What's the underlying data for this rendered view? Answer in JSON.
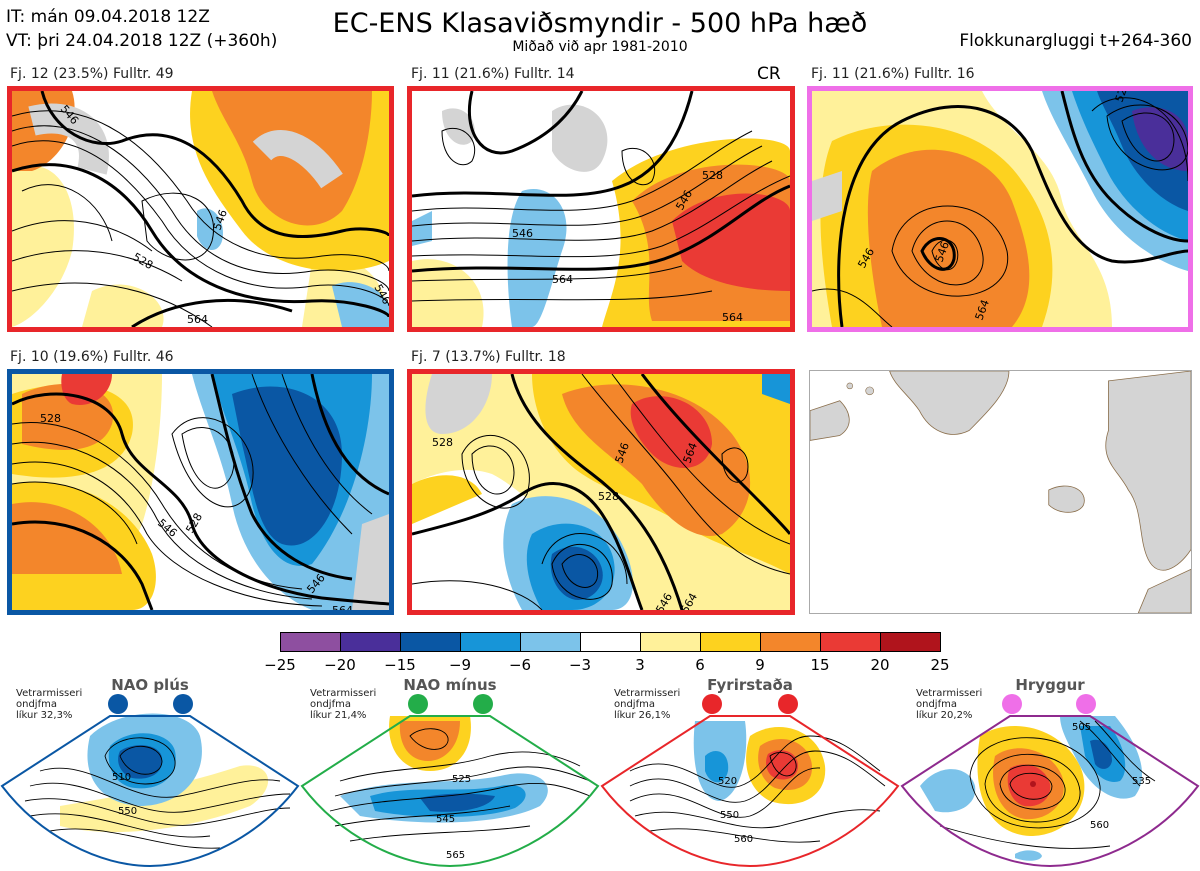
{
  "header": {
    "init_time": "IT: mán 09.04.2018 12Z",
    "valid_time": "VT: þri 24.04.2018 12Z  (+360h)",
    "title": "EC-ENS Klasaviðsmyndir - 500 hPa hæð",
    "subtitle": "Miðað við apr 1981-2010",
    "window": "Flokkunargluggi t+264-360"
  },
  "panels": [
    {
      "label": "Fj. 12 (23.5%)   Fulltr. 49",
      "border_color": "#e8262a",
      "contours": [
        "546",
        "528",
        "546",
        "564",
        "546"
      ]
    },
    {
      "label": "Fj. 11 (21.6%)   Fulltr. 14",
      "border_color": "#e8262a",
      "badge": "CR",
      "contours": [
        "546",
        "528",
        "546",
        "564",
        "564"
      ]
    },
    {
      "label": "Fj. 11 (21.6%)   Fulltr. 16",
      "border_color": "#ef6fe8",
      "contours": [
        "546",
        "546",
        "564",
        "528"
      ]
    },
    {
      "label": "Fj. 10 (19.6%)   Fulltr. 46",
      "border_color": "#0a57a4",
      "contours": [
        "528",
        "546",
        "528",
        "546",
        "564"
      ]
    },
    {
      "label": "Fj. 7 (13.7%)   Fulltr. 18",
      "border_color": "#e8262a",
      "contours": [
        "528",
        "546",
        "564",
        "528",
        "546",
        "564"
      ]
    },
    {
      "label": "",
      "border_color": "#aaaaaa",
      "contours": []
    }
  ],
  "colorbar": {
    "colors": [
      "#8e4fa0",
      "#4a2f9a",
      "#0a57a4",
      "#1795d8",
      "#7cc3ea",
      "#ffffff",
      "#fff19a",
      "#fdd21f",
      "#f3862b",
      "#ea3a35",
      "#b0141c"
    ],
    "ticks": [
      "−25",
      "−20",
      "−15",
      "−9",
      "−6",
      "−3",
      "3",
      "6",
      "9",
      "15",
      "20",
      "25"
    ]
  },
  "regimes": [
    {
      "name": "NAO plús",
      "dot_color": "#0a57a4",
      "border_color": "#0a57a4",
      "info": [
        "Vetrarmisseri",
        "ondjfma",
        "líkur 32,3%"
      ],
      "contours": [
        "510",
        "550"
      ]
    },
    {
      "name": "NAO mínus",
      "dot_color": "#23ad49",
      "border_color": "#23ad49",
      "info": [
        "Vetrarmisseri",
        "ondjfma",
        "líkur 21,4%"
      ],
      "contours": [
        "525",
        "545",
        "565"
      ]
    },
    {
      "name": "Fyrirstaða",
      "dot_color": "#e8262a",
      "border_color": "#e8262a",
      "info": [
        "Vetrarmisseri",
        "ondjfma",
        "líkur 26,1%"
      ],
      "contours": [
        "520",
        "550",
        "560"
      ]
    },
    {
      "name": "Hryggur",
      "dot_color": "#ef6fe8",
      "border_color": "#8e2a8e",
      "info": [
        "Vetrarmisseri",
        "ondjfma",
        "líkur 20,2%"
      ],
      "contours": [
        "505",
        "535",
        "560"
      ]
    }
  ]
}
